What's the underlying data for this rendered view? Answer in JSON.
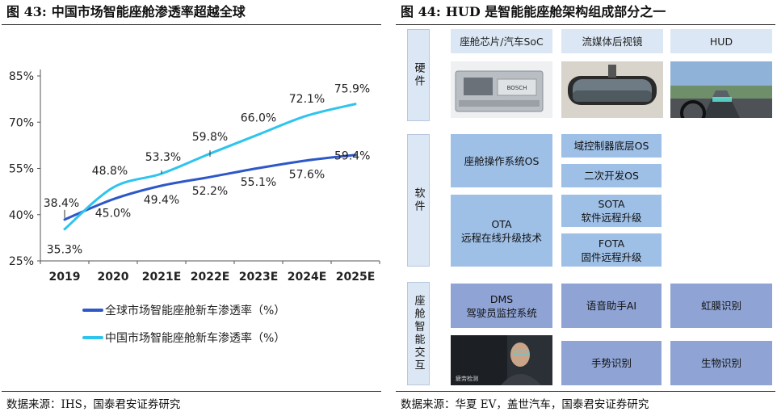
{
  "left_figure": {
    "number": "图 43:",
    "title": "中国市场智能座舱渗透率超越全球",
    "source": "数据来源：IHS，国泰君安证券研究"
  },
  "right_figure": {
    "number": "图 44:",
    "title": "HUD 是智能能座舱架构组成部分之一",
    "source": "数据来源：华夏 EV，盖世汽车，国泰君安证券研究",
    "categories": {
      "hardware": "硬件",
      "software": "软件",
      "interaction": "座舱智能交互"
    },
    "hardware": {
      "chip": "座舱芯片/汽车SoC",
      "mirror": "流媒体后视镜",
      "hud": "HUD",
      "chip_image_text": "BOSCH"
    },
    "software": {
      "cockpit_os": "座舱操作系统OS",
      "domain_os": "域控制器底层OS",
      "secondary_dev": "二次开发OS",
      "ota_title": "OTA",
      "ota_desc": "远程在线升级技术",
      "sota_title": "SOTA",
      "sota_desc": "软件远程升级",
      "fota_title": "FOTA",
      "fota_desc": "固件远程升级"
    },
    "interaction": {
      "dms_title": "DMS",
      "dms_desc": "驾驶员监控系统",
      "voice": "语音助手AI",
      "iris": "虹膜识别",
      "gesture": "手势识别",
      "bio": "生物识别",
      "dms_image_text": "疲劳检测"
    }
  },
  "chart_data": {
    "type": "line",
    "title": "中国市场智能座舱渗透率超越全球",
    "categories": [
      "2019",
      "2020",
      "2021E",
      "2022E",
      "2023E",
      "2024E",
      "2025E"
    ],
    "yticks": [
      "25%",
      "40%",
      "55%",
      "70%",
      "85%"
    ],
    "ylim": [
      25,
      85
    ],
    "legend_position": "bottom",
    "series": [
      {
        "name": "全球市场智能座舱新车渗透率（%）",
        "color": "#2e58c8",
        "values": [
          38.4,
          45.0,
          49.4,
          52.2,
          55.1,
          57.6,
          59.4
        ],
        "labels": [
          "38.4%",
          "45.0%",
          "49.4%",
          "52.2%",
          "55.1%",
          "57.6%",
          "59.4%"
        ]
      },
      {
        "name": "中国市场智能座舱新车渗透率（%）",
        "color": "#2ec4ee",
        "values": [
          35.3,
          48.8,
          53.3,
          59.8,
          66.0,
          72.1,
          75.9
        ],
        "labels": [
          "35.3%",
          "48.8%",
          "53.3%",
          "59.8%",
          "66.0%",
          "72.1%",
          "75.9%"
        ]
      }
    ]
  }
}
